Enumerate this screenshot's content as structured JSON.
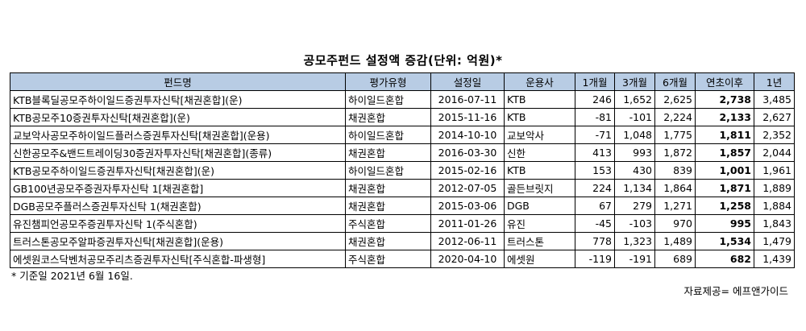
{
  "title": "공모주펀드 설정액 증감(단위: 억원)*",
  "header_color": "#b8cce4",
  "columns": [
    "펀드명",
    "평가유형",
    "설정일",
    "운용사",
    "1개월",
    "3개월",
    "6개월",
    "연초이후",
    "1년"
  ],
  "rows": [
    [
      "KTB블록딜공모주하이일드증권투자신탁[채권혼합](운)",
      "하이일드혼합",
      "2016-07-11",
      "KTB",
      "246",
      "1,652",
      "2,625",
      "2,738",
      "3,485"
    ],
    [
      "KTB공모주10증권투자신탁[채권혼합](운)",
      "채권혼합",
      "2015-11-16",
      "KTB",
      "-81",
      "-101",
      "2,224",
      "2,133",
      "2,627"
    ],
    [
      "교보악사공모주하이일드플러스증권투자신탁[채권혼합](운용)",
      "하이일드혼합",
      "2014-10-10",
      "교보악사",
      "-71",
      "1,048",
      "1,775",
      "1,811",
      "2,352"
    ],
    [
      "신한공모주&밴드트레이딩30증권자투자신탁[채권혼합](종류)",
      "채권혼합",
      "2016-03-30",
      "신한",
      "413",
      "993",
      "1,872",
      "1,857",
      "2,044"
    ],
    [
      "KTB공모주하이일드증권투자신탁[채권혼합](운)",
      "하이일드혼합",
      "2015-02-16",
      "KTB",
      "153",
      "430",
      "839",
      "1,001",
      "1,961"
    ],
    [
      "GB100년공모주증권자투자신탁 1[채권혼합]",
      "채권혼합",
      "2012-07-05",
      "골든브릿지",
      "224",
      "1,134",
      "1,864",
      "1,871",
      "1,889"
    ],
    [
      "DGB공모주플러스증권투자신탁 1(채권혼합)",
      "채권혼합",
      "2015-03-06",
      "DGB",
      "67",
      "279",
      "1,271",
      "1,258",
      "1,884"
    ],
    [
      "유진챔피언공모주증권투자신탁 1(주식혼합)",
      "주식혼합",
      "2011-01-26",
      "유진",
      "-45",
      "-103",
      "970",
      "995",
      "1,843"
    ],
    [
      "트러스톤공모주알파증권투자신탁[채권혼합](운용)",
      "채권혼합",
      "2012-06-11",
      "트러스톤",
      "778",
      "1,323",
      "1,489",
      "1,534",
      "1,479"
    ],
    [
      "에셋원코스닥벤처공모주리츠증권투자신탁[주식혼합-파생형]",
      "주식혼합",
      "2020-04-10",
      "에셋원",
      "-119",
      "-191",
      "689",
      "682",
      "1,439"
    ]
  ],
  "footnote": "* 기준일 2021년 6월 16일.",
  "source": "자료제공= 에프앤가이드"
}
